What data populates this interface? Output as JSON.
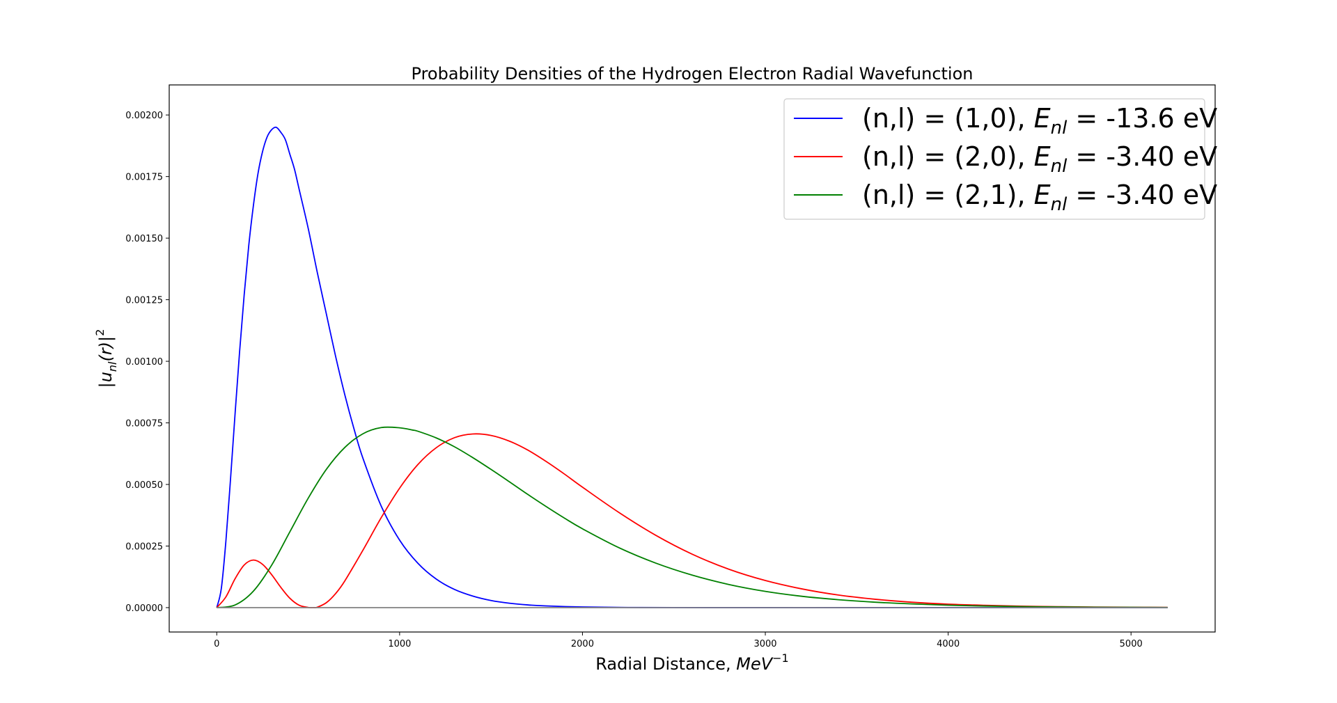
{
  "chart_data": {
    "type": "line",
    "title": "Probability Densities of the Hydrogen Electron Radial Wavefunction",
    "xlabel": "Radial Distance, MeV⁻¹",
    "xlabel_parts": {
      "plain": "Radial Distance, ",
      "italic": "MeV",
      "sup": "−1"
    },
    "ylabel": "|u_nl(r)|²",
    "ylabel_parts": {
      "pipe_open": "|",
      "u": "u",
      "u_sub": "nl",
      "arg": "(r)",
      "pipe_close": "|",
      "sup": "2"
    },
    "xlim": [
      -260,
      5460
    ],
    "ylim": [
      -9.9e-05,
      0.002122
    ],
    "x_ticks": [
      0,
      1000,
      2000,
      3000,
      4000,
      5000
    ],
    "x_tick_labels": [
      "0",
      "1000",
      "2000",
      "3000",
      "4000",
      "5000"
    ],
    "y_ticks": [
      0,
      0.00025,
      0.0005,
      0.00075,
      0.001,
      0.00125,
      0.0015,
      0.00175,
      0.002
    ],
    "y_tick_labels": [
      "0.00000",
      "0.00025",
      "0.00050",
      "0.00075",
      "0.00100",
      "0.00125",
      "0.00150",
      "0.00175",
      "0.00200"
    ],
    "grid": false,
    "legend_position": "top-right",
    "baseline": {
      "y": 0,
      "x_range": [
        0,
        5200
      ],
      "color": "#808080"
    },
    "series": [
      {
        "name": "(n,l) = (1,0), E_nl = -13.6 eV",
        "legend": {
          "pre": "(n,l) = (1,0), ",
          "E": "E",
          "sub": "nl",
          "eq": " = ",
          "value": " -13.6 eV"
        },
        "color": "#0000ff",
        "x": [
          0,
          25,
          50,
          75,
          100,
          125,
          150,
          175,
          200,
          225,
          250,
          275,
          300,
          325,
          350,
          375,
          400,
          425,
          450,
          500,
          550,
          600,
          650,
          700,
          750,
          800,
          900,
          1000,
          1100,
          1200,
          1300,
          1400,
          1500,
          1600,
          1700,
          1800,
          2000,
          2250,
          2500,
          3000,
          3500,
          4000,
          5200
        ],
        "y": [
          0,
          7.8e-05,
          0.00027,
          0.000519,
          0.000785,
          0.00104,
          0.00127,
          0.00147,
          0.00163,
          0.00176,
          0.00185,
          0.00191,
          0.00194,
          0.00195,
          0.00193,
          0.0019,
          0.00184,
          0.00178,
          0.0017,
          0.00154,
          0.00136,
          0.00119,
          0.00102,
          0.000865,
          0.000727,
          0.000605,
          0.000411,
          0.000274,
          0.00018,
          0.000116,
          7.4e-05,
          4.7e-05,
          2.9e-05,
          1.8e-05,
          1.1e-05,
          6.9e-06,
          2.5e-06,
          7e-07,
          2e-07,
          0,
          0,
          0,
          0
        ]
      },
      {
        "name": "(n,l) = (2,0), E_nl = -3.40 eV",
        "legend": {
          "pre": "(n,l) = (2,0), ",
          "E": "E",
          "sub": "nl",
          "eq": " = ",
          "value": " -3.40 eV"
        },
        "color": "#ff0000",
        "x": [
          0,
          50,
          100,
          150,
          200,
          250,
          300,
          350,
          400,
          450,
          500,
          530,
          550,
          600,
          650,
          700,
          800,
          900,
          1000,
          1100,
          1200,
          1300,
          1400,
          1500,
          1600,
          1700,
          1800,
          1900,
          2000,
          2200,
          2400,
          2600,
          2800,
          3000,
          3200,
          3400,
          3600,
          3800,
          4000,
          4200,
          4400,
          4600,
          4800,
          5000,
          5200
        ],
        "y": [
          0,
          4.35e-05,
          0.000117,
          0.000173,
          0.000193,
          0.000176,
          0.000134,
          8.27e-05,
          3.79e-05,
          1e-05,
          7e-07,
          0,
          1.6e-06,
          2.04e-05,
          5.7e-05,
          0.000108,
          0.000234,
          0.000366,
          0.000485,
          0.000581,
          0.000649,
          0.00069,
          0.000705,
          0.000699,
          0.000676,
          0.00064,
          0.000594,
          0.000543,
          0.000489,
          0.000386,
          0.000294,
          0.000217,
          0.000156,
          0.00011,
          7.6e-05,
          5.1e-05,
          3.4e-05,
          2.2e-05,
          1.4e-05,
          9.3e-06,
          6e-06,
          3.8e-06,
          2.4e-06,
          1.5e-06,
          9e-07
        ]
      },
      {
        "name": "(n,l) = (2,1), E_nl = -3.40 eV",
        "legend": {
          "pre": "(n,l) = (2,1), ",
          "E": "E",
          "sub": "nl",
          "eq": " = ",
          "value": " -3.40 eV"
        },
        "color": "#008000",
        "x": [
          0,
          100,
          200,
          300,
          400,
          500,
          600,
          700,
          800,
          900,
          1000,
          1070,
          1100,
          1200,
          1300,
          1400,
          1500,
          1600,
          1700,
          1800,
          1900,
          2000,
          2200,
          2400,
          2600,
          2800,
          3000,
          3200,
          3400,
          3600,
          3800,
          4000,
          4200,
          4400,
          4600,
          4800,
          5000,
          5200
        ],
        "y": [
          0,
          1.07e-05,
          6.67e-05,
          0.000172,
          0.000308,
          0.000444,
          0.000562,
          0.00065,
          0.000706,
          0.000731,
          0.00073,
          0.000721,
          0.000716,
          0.000689,
          0.000653,
          0.000609,
          0.000561,
          0.000511,
          0.00046,
          0.000411,
          0.000364,
          0.00032,
          0.000243,
          0.000181,
          0.000132,
          9.4e-05,
          6.6e-05,
          4.6e-05,
          3.2e-05,
          2.2e-05,
          1.5e-05,
          9.8e-06,
          6.4e-06,
          4.2e-06,
          2.7e-06,
          1.7e-06,
          1.1e-06,
          7e-07
        ]
      }
    ]
  }
}
